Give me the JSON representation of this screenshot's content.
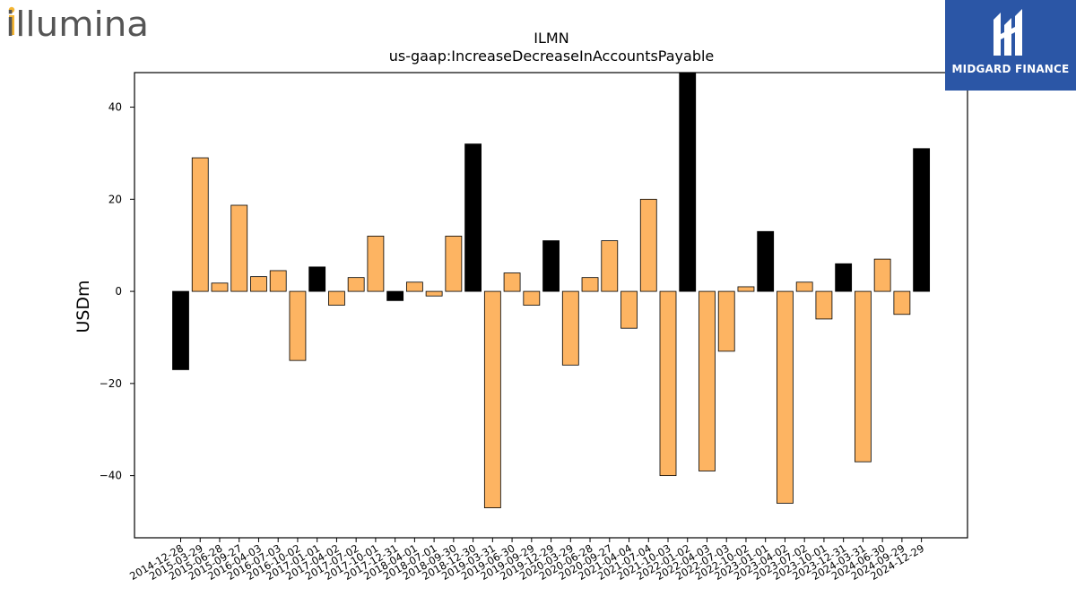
{
  "branding": {
    "left_logo_text": "illumina",
    "right_logo_text": "MIDGARD FINANCE",
    "left_logo_dark": "#555555",
    "left_logo_accent": "#f4b532",
    "right_logo_bg": "#2b56a6"
  },
  "chart_data": {
    "type": "bar",
    "title": "ILMN",
    "subtitle": "us-gaap:IncreaseDecreaseInAccountsPayable",
    "xlabel": "",
    "ylabel": "USDm",
    "ylim": [
      -53.5,
      47.5
    ],
    "yticks": [
      -40,
      -20,
      0,
      20,
      40
    ],
    "ytick_labels": [
      "−40",
      "−20",
      "0",
      "20",
      "40"
    ],
    "grid": false,
    "colors": {
      "positive_quarter": "#fdb462",
      "year_end": "#000000",
      "edge": "#000000"
    },
    "categories": [
      "2014-12-28",
      "2015-03-29",
      "2015-06-28",
      "2015-09-27",
      "2016-04-03",
      "2016-07-03",
      "2016-10-02",
      "2017-01-01",
      "2017-04-02",
      "2017-07-02",
      "2017-10-01",
      "2017-12-31",
      "2018-04-01",
      "2018-07-01",
      "2018-09-30",
      "2018-12-30",
      "2019-03-31",
      "2019-06-30",
      "2019-09-29",
      "2019-12-29",
      "2020-03-29",
      "2020-06-28",
      "2020-09-27",
      "2021-04-04",
      "2021-07-04",
      "2021-10-03",
      "2022-01-02",
      "2022-04-03",
      "2022-07-03",
      "2022-10-02",
      "2023-01-01",
      "2023-04-02",
      "2023-07-02",
      "2023-10-01",
      "2023-12-31",
      "2024-03-31",
      "2024-06-30",
      "2024-09-29",
      "2024-12-29"
    ],
    "values": [
      -17,
      29,
      1.8,
      18.7,
      3.2,
      4.5,
      -15,
      5.3,
      -3,
      3,
      12,
      -2,
      2,
      -1,
      12,
      32,
      -47,
      4,
      -3,
      11,
      -16,
      3,
      11,
      -8,
      20,
      -40,
      48,
      -39,
      -13,
      1,
      13,
      -46,
      2,
      -6,
      6,
      -37,
      7,
      -5,
      31
    ],
    "highlight": [
      true,
      false,
      false,
      false,
      false,
      false,
      false,
      true,
      false,
      false,
      false,
      true,
      false,
      false,
      false,
      true,
      false,
      false,
      false,
      true,
      false,
      false,
      false,
      false,
      false,
      false,
      true,
      false,
      false,
      false,
      true,
      false,
      false,
      false,
      true,
      false,
      false,
      false,
      true
    ]
  }
}
